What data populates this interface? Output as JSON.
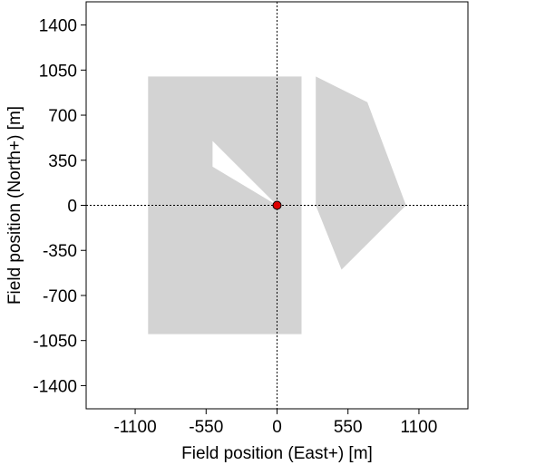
{
  "chart_data": {
    "type": "area",
    "title": "",
    "xlabel": "Field position (East+) [m]",
    "ylabel": "Field position (North+) [m]",
    "xlim": [
      -1480,
      1480
    ],
    "ylim": [
      -1580,
      1580
    ],
    "xticks": [
      -1100,
      -550,
      0,
      550,
      1100
    ],
    "yticks": [
      1400,
      1050,
      700,
      350,
      0,
      -350,
      -700,
      -1050,
      -1400
    ],
    "grid": false,
    "reference_lines": [
      {
        "orientation": "vertical",
        "value": 0,
        "style": "dotted"
      },
      {
        "orientation": "horizontal",
        "value": 0,
        "style": "dotted"
      }
    ],
    "regions": [
      {
        "name": "",
        "fill": "#d3d3d3",
        "points": [
          [
            -1000,
            1000
          ],
          [
            190,
            1000
          ],
          [
            190,
            -1000
          ],
          [
            -1000,
            -1000
          ]
        ]
      },
      {
        "name": "",
        "fill": "#ffffff",
        "points": [
          [
            -500,
            500
          ],
          [
            -500,
            300
          ],
          [
            0,
            0
          ]
        ]
      },
      {
        "name": "",
        "fill": "#d3d3d3",
        "points": [
          [
            300,
            1000
          ],
          [
            700,
            800
          ],
          [
            1000,
            0
          ],
          [
            500,
            -500
          ],
          [
            300,
            0
          ]
        ]
      }
    ],
    "marker": {
      "x": 0,
      "y": 0,
      "fill": "#dd0000",
      "stroke": "#000000"
    }
  }
}
